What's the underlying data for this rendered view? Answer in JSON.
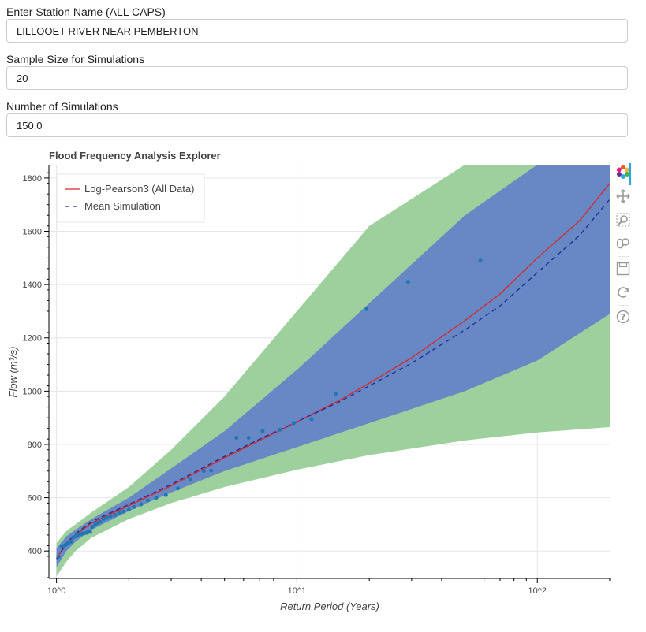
{
  "form": {
    "station_label": "Enter Station Name (ALL CAPS)",
    "station_value": "LILLOOET RIVER NEAR PEMBERTON",
    "sample_label": "Sample Size for Simulations",
    "sample_value": "20",
    "sims_label": "Number of Simulations",
    "sims_value": "150.0"
  },
  "toolbar": {
    "tools": [
      "bokeh-logo-icon",
      "pan-icon",
      "box-zoom-icon",
      "wheel-zoom-icon",
      "save-icon",
      "reset-icon",
      "help-icon"
    ]
  },
  "colors": {
    "outer_band": "#9dd09d",
    "inner_band": "#6788c4",
    "lp3_line": "#d62728",
    "mean_line": "#1f2c8f",
    "points": "#1f77b4"
  },
  "chart_data": {
    "type": "line",
    "title": "Flood Frequency Analysis Explorer",
    "xlabel": "Return Period (Years)",
    "ylabel": "Flow (m³/s)",
    "x_scale": "log",
    "xlim": [
      0.93,
      200
    ],
    "ylim": [
      300,
      1850
    ],
    "x_tick_labels": [
      "10^0",
      "10^1",
      "10^2"
    ],
    "x_tick_values": [
      1,
      10,
      100
    ],
    "y_ticks": [
      400,
      600,
      800,
      1000,
      1200,
      1400,
      1600,
      1800
    ],
    "grid": true,
    "legend_position": "top-left",
    "legend": [
      "Log-Pearson3 (All Data)",
      "Mean Simulation"
    ],
    "series": [
      {
        "name": "Log-Pearson3 (All Data)",
        "style": "solid",
        "x": [
          1.0,
          1.05,
          1.1,
          1.2,
          1.4,
          1.6,
          2.0,
          3.0,
          5.0,
          7.0,
          10.0,
          15.0,
          20.0,
          30.0,
          50.0,
          70.0,
          100.0,
          150.0,
          200.0
        ],
        "y": [
          375,
          400,
          425,
          460,
          505,
          530,
          570,
          645,
          750,
          815,
          885,
          965,
          1030,
          1125,
          1265,
          1365,
          1500,
          1640,
          1780
        ]
      },
      {
        "name": "Mean Simulation",
        "style": "dashed",
        "x": [
          1.0,
          1.05,
          1.1,
          1.2,
          1.4,
          1.6,
          2.0,
          3.0,
          5.0,
          7.0,
          10.0,
          15.0,
          20.0,
          30.0,
          50.0,
          70.0,
          100.0,
          150.0,
          200.0
        ],
        "y": [
          370,
          400,
          430,
          465,
          510,
          535,
          575,
          650,
          755,
          820,
          885,
          960,
          1020,
          1105,
          1230,
          1320,
          1445,
          1585,
          1720
        ]
      }
    ],
    "bands": [
      {
        "role": "outer",
        "x": [
          1.0,
          1.1,
          1.2,
          1.4,
          2.0,
          3.0,
          5.0,
          10.0,
          20.0,
          50.0,
          100.0,
          200.0
        ],
        "lower": [
          305,
          360,
          400,
          450,
          520,
          580,
          640,
          705,
          760,
          815,
          845,
          865
        ],
        "upper": [
          430,
          475,
          500,
          545,
          640,
          780,
          980,
          1300,
          1620,
          1850,
          1850,
          1850
        ]
      },
      {
        "role": "inner",
        "x": [
          1.0,
          1.1,
          1.2,
          1.4,
          2.0,
          3.0,
          5.0,
          10.0,
          20.0,
          50.0,
          100.0,
          200.0
        ],
        "lower": [
          340,
          400,
          435,
          480,
          550,
          620,
          700,
          790,
          880,
          1000,
          1115,
          1290
        ],
        "upper": [
          410,
          455,
          480,
          520,
          600,
          710,
          850,
          1080,
          1330,
          1660,
          1850,
          1850
        ]
      }
    ],
    "points": {
      "x": [
        1.02,
        1.05,
        1.08,
        1.1,
        1.12,
        1.15,
        1.17,
        1.2,
        1.22,
        1.25,
        1.28,
        1.3,
        1.33,
        1.35,
        1.38,
        1.41,
        1.45,
        1.48,
        1.52,
        1.57,
        1.62,
        1.68,
        1.75,
        1.82,
        1.9,
        2.0,
        2.1,
        2.25,
        2.4,
        2.6,
        2.85,
        3.2,
        3.6,
        4.1,
        4.4,
        5.6,
        6.3,
        7.2,
        8.5,
        9.7,
        11.5,
        14.5,
        19.5,
        29.0,
        58.0
      ],
      "y": [
        378,
        418,
        420,
        425,
        430,
        435,
        450,
        455,
        460,
        462,
        465,
        466,
        468,
        470,
        472,
        490,
        500,
        505,
        510,
        520,
        525,
        530,
        535,
        542,
        548,
        555,
        565,
        575,
        590,
        600,
        610,
        635,
        670,
        700,
        702,
        825,
        825,
        850,
        855,
        880,
        895,
        990,
        1308,
        1410,
        1490
      ]
    }
  }
}
